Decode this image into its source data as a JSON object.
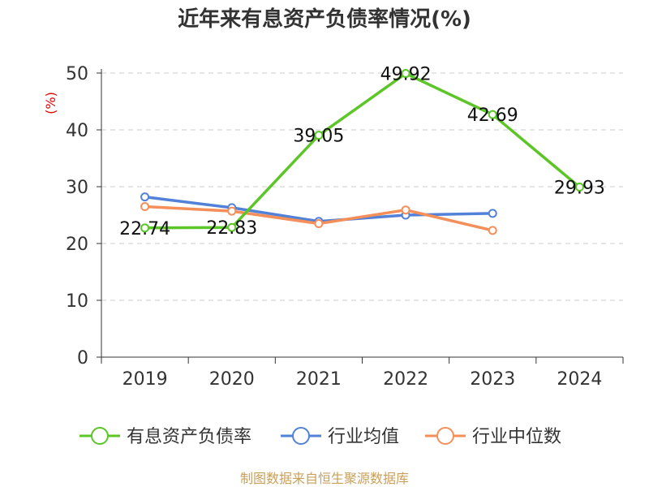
{
  "chart_data": {
    "type": "line",
    "title": "近年来有息资产负债率情况(%)",
    "ylabel": "(%)",
    "xlabel": "",
    "categories": [
      "2019",
      "2020",
      "2021",
      "2022",
      "2023",
      "2024"
    ],
    "ylim": [
      0,
      50
    ],
    "yticks": [
      0,
      10,
      20,
      30,
      40,
      50
    ],
    "grid": true,
    "legend_position": "bottom",
    "series": [
      {
        "name": "有息资产负债率",
        "color": "#5cc528",
        "values": [
          22.74,
          22.83,
          39.05,
          49.92,
          42.69,
          29.93
        ],
        "labels": [
          "22.74",
          "22.83",
          "39.05",
          "49.92",
          "42.69",
          "29.93"
        ]
      },
      {
        "name": "行业均值",
        "color": "#5281d8",
        "values": [
          28.2,
          26.3,
          23.9,
          25.0,
          25.3,
          null
        ]
      },
      {
        "name": "行业中位数",
        "color": "#f58f5a",
        "values": [
          26.5,
          25.7,
          23.5,
          25.9,
          22.3,
          null
        ]
      }
    ],
    "source": "制图数据来自恒生聚源数据库"
  }
}
